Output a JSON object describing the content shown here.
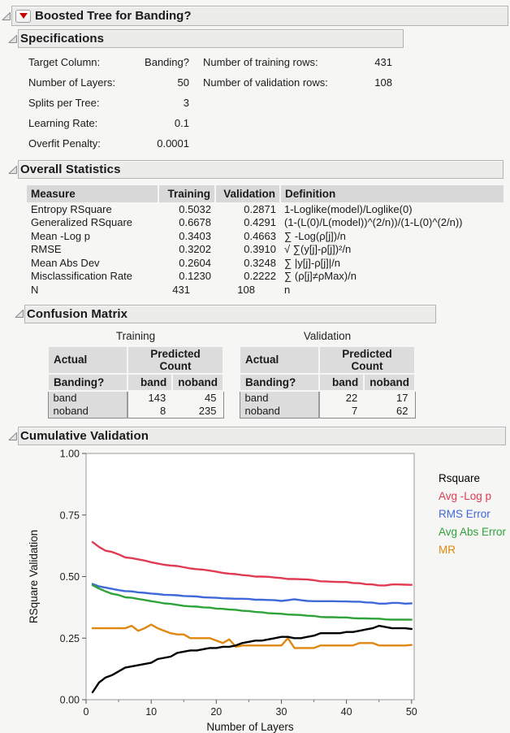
{
  "window": {
    "title": "Boosted Tree for Banding?"
  },
  "icons": {
    "disclosure": "open-disclosure-triangle",
    "menu": "red-triangle-menu"
  },
  "sections": {
    "specifications": {
      "title": "Specifications",
      "left": [
        {
          "label": "Target Column:",
          "value": "Banding?"
        },
        {
          "label": "Number of Layers:",
          "value": "50"
        },
        {
          "label": "Splits per Tree:",
          "value": "3"
        },
        {
          "label": "Learning Rate:",
          "value": "0.1"
        },
        {
          "label": "Overfit Penalty:",
          "value": "0.0001"
        }
      ],
      "right": [
        {
          "label": "Number of training rows:",
          "value": "431"
        },
        {
          "label": "Number of validation rows:",
          "value": "108"
        }
      ]
    },
    "overall_statistics": {
      "title": "Overall Statistics",
      "columns": [
        "Measure",
        "Training",
        "Validation",
        "Definition"
      ],
      "rows": [
        [
          "Entropy RSquare",
          "0.5032",
          "0.2871",
          "1-Loglike(model)/Loglike(0)"
        ],
        [
          "Generalized RSquare",
          "0.6678",
          "0.4291",
          "(1-(L(0)/L(model))^(2/n))/(1-L(0)^(2/n))"
        ],
        [
          "Mean -Log p",
          "0.3403",
          "0.4663",
          "∑ -Log(ρ[j])/n"
        ],
        [
          "RMSE",
          "0.3202",
          "0.3910",
          "√ ∑(y[j]-ρ[j])²/n"
        ],
        [
          "Mean Abs Dev",
          "0.2604",
          "0.3248",
          "∑ |y[j]-ρ[j]|/n"
        ],
        [
          "Misclassification Rate",
          "0.1230",
          "0.2222",
          "∑ (ρ[j]≠ρMax)/n"
        ],
        [
          "N",
          "431",
          "108",
          "n"
        ]
      ]
    },
    "confusion_matrix": {
      "title": "Confusion Matrix",
      "tables": [
        {
          "caption": "Training",
          "actual_header": "Actual",
          "pred_col_header": "Predicted Count",
          "row_header": "Banding?",
          "pred_labels": [
            "band",
            "noband"
          ],
          "rows": [
            {
              "label": "band",
              "values": [
                "143",
                "45"
              ]
            },
            {
              "label": "noband",
              "values": [
                "8",
                "235"
              ]
            }
          ]
        },
        {
          "caption": "Validation",
          "actual_header": "Actual",
          "pred_col_header": "Predicted Count",
          "row_header": "Banding?",
          "pred_labels": [
            "band",
            "noband"
          ],
          "rows": [
            {
              "label": "band",
              "values": [
                "22",
                "17"
              ]
            },
            {
              "label": "noband",
              "values": [
                "7",
                "62"
              ]
            }
          ]
        }
      ]
    },
    "cumulative_validation": {
      "title": "Cumulative Validation"
    }
  },
  "chart_data": {
    "type": "line",
    "title": "Cumulative Validation",
    "xlabel": "Number of Layers",
    "ylabel": "RSquare Validation",
    "xlim": [
      0,
      50.4
    ],
    "ylim": [
      0,
      1
    ],
    "xticks": [
      0,
      10,
      20,
      30,
      40,
      50
    ],
    "xminor": [
      5,
      15,
      25,
      35,
      45
    ],
    "yticks": [
      0,
      0.25,
      0.5,
      0.75,
      1
    ],
    "ytick_labels": [
      "0.00",
      "0.25",
      "0.50",
      "0.75",
      "1.00"
    ],
    "grid": false,
    "legend_position": "right",
    "x": [
      1,
      2,
      3,
      4,
      5,
      6,
      7,
      8,
      9,
      10,
      11,
      12,
      13,
      14,
      15,
      16,
      17,
      18,
      19,
      20,
      21,
      22,
      23,
      24,
      25,
      26,
      27,
      28,
      29,
      30,
      31,
      32,
      33,
      34,
      35,
      36,
      37,
      38,
      39,
      40,
      41,
      42,
      43,
      44,
      45,
      46,
      47,
      48,
      49,
      50
    ],
    "series": [
      {
        "name": "Rsquare",
        "color": "#000000",
        "values": [
          0.03,
          0.07,
          0.09,
          0.1,
          0.115,
          0.13,
          0.135,
          0.14,
          0.145,
          0.15,
          0.165,
          0.17,
          0.175,
          0.19,
          0.195,
          0.2,
          0.2,
          0.205,
          0.21,
          0.21,
          0.215,
          0.215,
          0.22,
          0.23,
          0.235,
          0.24,
          0.24,
          0.245,
          0.25,
          0.255,
          0.255,
          0.25,
          0.25,
          0.255,
          0.26,
          0.27,
          0.27,
          0.27,
          0.27,
          0.275,
          0.275,
          0.28,
          0.285,
          0.29,
          0.3,
          0.295,
          0.29,
          0.29,
          0.29,
          0.2871
        ]
      },
      {
        "name": "Avg -Log p",
        "color": "#e13a53",
        "values": [
          0.64,
          0.62,
          0.605,
          0.6,
          0.59,
          0.578,
          0.575,
          0.57,
          0.565,
          0.558,
          0.553,
          0.548,
          0.545,
          0.543,
          0.538,
          0.533,
          0.53,
          0.528,
          0.524,
          0.52,
          0.515,
          0.512,
          0.51,
          0.506,
          0.504,
          0.5,
          0.5,
          0.499,
          0.496,
          0.494,
          0.49,
          0.49,
          0.489,
          0.488,
          0.485,
          0.481,
          0.48,
          0.479,
          0.478,
          0.478,
          0.474,
          0.473,
          0.469,
          0.468,
          0.464,
          0.464,
          0.468,
          0.468,
          0.467,
          0.4663
        ]
      },
      {
        "name": "RMS Error",
        "color": "#3f69d9",
        "values": [
          0.47,
          0.46,
          0.455,
          0.45,
          0.445,
          0.441,
          0.44,
          0.436,
          0.434,
          0.431,
          0.429,
          0.426,
          0.425,
          0.424,
          0.421,
          0.42,
          0.419,
          0.416,
          0.415,
          0.414,
          0.412,
          0.411,
          0.41,
          0.41,
          0.409,
          0.406,
          0.406,
          0.405,
          0.404,
          0.401,
          0.404,
          0.408,
          0.404,
          0.401,
          0.4,
          0.4,
          0.4,
          0.4,
          0.399,
          0.399,
          0.398,
          0.398,
          0.395,
          0.394,
          0.39,
          0.39,
          0.393,
          0.393,
          0.39,
          0.391
        ]
      },
      {
        "name": "Avg Abs Error",
        "color": "#2fa33a",
        "values": [
          0.465,
          0.451,
          0.44,
          0.43,
          0.425,
          0.416,
          0.414,
          0.409,
          0.405,
          0.4,
          0.396,
          0.391,
          0.389,
          0.385,
          0.381,
          0.379,
          0.378,
          0.375,
          0.374,
          0.37,
          0.369,
          0.366,
          0.365,
          0.361,
          0.36,
          0.356,
          0.355,
          0.351,
          0.35,
          0.349,
          0.346,
          0.345,
          0.344,
          0.341,
          0.34,
          0.336,
          0.335,
          0.335,
          0.334,
          0.334,
          0.331,
          0.33,
          0.33,
          0.329,
          0.329,
          0.326,
          0.325,
          0.325,
          0.325,
          0.3248
        ]
      },
      {
        "name": "MR",
        "color": "#e0870f",
        "values": [
          0.29,
          0.29,
          0.29,
          0.29,
          0.29,
          0.29,
          0.3,
          0.28,
          0.29,
          0.305,
          0.29,
          0.28,
          0.27,
          0.265,
          0.265,
          0.25,
          0.25,
          0.25,
          0.25,
          0.24,
          0.23,
          0.245,
          0.215,
          0.22,
          0.22,
          0.22,
          0.22,
          0.22,
          0.22,
          0.22,
          0.25,
          0.21,
          0.21,
          0.21,
          0.21,
          0.22,
          0.22,
          0.22,
          0.22,
          0.22,
          0.22,
          0.23,
          0.23,
          0.23,
          0.22,
          0.22,
          0.22,
          0.22,
          0.22,
          0.2222
        ]
      }
    ]
  }
}
